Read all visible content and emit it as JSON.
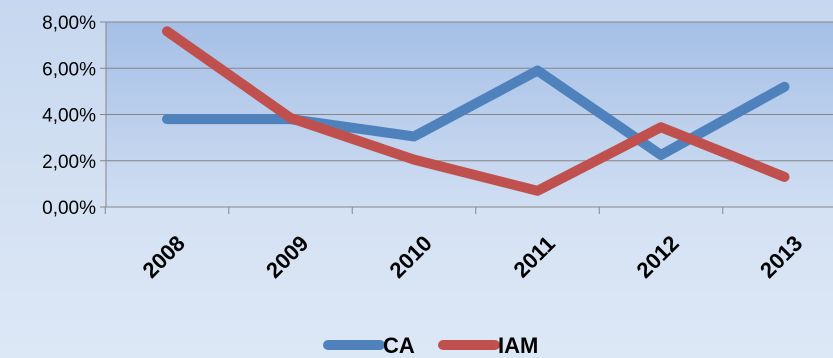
{
  "chart_data": {
    "type": "line",
    "categories": [
      "2008",
      "2009",
      "2010",
      "2011",
      "2012",
      "2013"
    ],
    "series": [
      {
        "name": "CA",
        "values": [
          3.8,
          3.8,
          3.05,
          5.9,
          2.25,
          5.2
        ],
        "color": "#4f81bd"
      },
      {
        "name": "IAM",
        "values": [
          7.6,
          3.85,
          2.05,
          0.7,
          3.45,
          1.3
        ],
        "color": "#c0504d"
      }
    ],
    "yticks": [
      "0,00%",
      "2,00%",
      "4,00%",
      "6,00%",
      "8,00%"
    ],
    "ylim": [
      0,
      8
    ],
    "grid": true,
    "legend": "bottom",
    "plot_background": "#a7c1e6"
  }
}
